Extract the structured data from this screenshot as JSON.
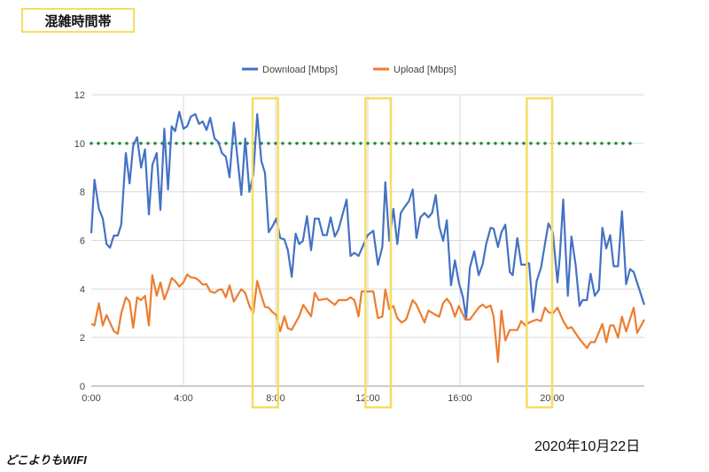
{
  "header": {
    "title": "混雑時間帯"
  },
  "footer": {
    "date": "2020年10月22日",
    "logo": "どこよりもWIFI"
  },
  "chart_data": {
    "type": "line",
    "title": "",
    "xlabel": "",
    "ylabel": "",
    "xlim": [
      0,
      24
    ],
    "ylim": [
      0,
      12
    ],
    "grid": true,
    "legend_position": "top-center",
    "x_ticks": [
      {
        "value": 0,
        "label": "0:00"
      },
      {
        "value": 4,
        "label": "4:00"
      },
      {
        "value": 8,
        "label": "8:00"
      },
      {
        "value": 12,
        "label": "12:00"
      },
      {
        "value": 16,
        "label": "16:00"
      },
      {
        "value": 20,
        "label": "20:00"
      }
    ],
    "y_ticks": [
      0,
      2,
      4,
      6,
      8,
      10,
      12
    ],
    "reference_line": {
      "y": 10,
      "color": "#1e8a3a",
      "style": "dotted"
    },
    "highlight_ranges": [
      [
        7.0,
        8.1
      ],
      [
        11.9,
        13.0
      ],
      [
        18.9,
        20.0
      ]
    ],
    "highlight_color": "#f5dd63",
    "series": [
      {
        "name": "Download [Mbps]",
        "color": "#4472c4",
        "x": [
          0,
          0.14,
          0.33,
          0.5,
          0.66,
          0.81,
          0.98,
          1.15,
          1.3,
          1.5,
          1.66,
          1.82,
          1.99,
          2.16,
          2.33,
          2.5,
          2.65,
          2.84,
          3.0,
          3.17,
          3.33,
          3.49,
          3.64,
          3.82,
          4.0,
          4.16,
          4.32,
          4.52,
          4.67,
          4.84,
          5.0,
          5.16,
          5.35,
          5.52,
          5.67,
          5.84,
          6.0,
          6.19,
          6.34,
          6.51,
          6.68,
          6.86,
          7.03,
          7.2,
          7.38,
          7.54,
          7.7,
          7.86,
          8.03,
          8.2,
          8.38,
          8.53,
          8.7,
          8.87,
          9.02,
          9.18,
          9.36,
          9.54,
          9.7,
          9.87,
          10.05,
          10.22,
          10.39,
          10.57,
          10.73,
          11.08,
          11.25,
          11.42,
          11.6,
          11.85,
          11.98,
          12.24,
          12.44,
          12.63,
          12.76,
          12.93,
          13.11,
          13.28,
          13.43,
          13.6,
          13.79,
          13.95,
          14.11,
          14.28,
          14.46,
          14.63,
          14.79,
          14.95,
          15.1,
          15.27,
          15.43,
          15.61,
          15.78,
          15.95,
          16.13,
          16.27,
          16.43,
          16.62,
          16.81,
          16.98,
          17.14,
          17.33,
          17.46,
          17.65,
          17.8,
          17.97,
          18.16,
          18.29,
          18.49,
          18.66,
          18.84,
          19.0,
          19.17,
          19.33,
          19.52,
          19.69,
          19.84,
          20.03,
          20.23,
          20.33,
          20.48,
          20.68,
          20.84,
          21.02,
          21.19,
          21.32,
          21.51,
          21.67,
          21.85,
          22.03,
          22.18,
          22.35,
          22.52,
          22.67,
          22.86,
          23.03,
          23.21,
          23.38,
          23.54,
          24.0
        ],
        "values": [
          6.3,
          8.5,
          7.3,
          6.9,
          5.85,
          5.7,
          6.2,
          6.2,
          6.65,
          9.6,
          8.35,
          9.9,
          10.25,
          9.0,
          9.75,
          7.07,
          9.1,
          9.6,
          7.25,
          10.6,
          8.1,
          10.7,
          10.5,
          11.3,
          10.6,
          10.7,
          11.1,
          11.2,
          10.8,
          10.9,
          10.55,
          11.05,
          10.2,
          10.05,
          9.6,
          9.45,
          8.6,
          10.85,
          9.45,
          7.87,
          10.2,
          8.0,
          8.7,
          11.2,
          9.27,
          8.78,
          6.34,
          6.58,
          6.9,
          6.1,
          6.04,
          5.6,
          4.5,
          6.28,
          5.85,
          5.97,
          7.0,
          5.6,
          6.9,
          6.9,
          6.22,
          6.22,
          6.95,
          6.16,
          6.46,
          7.68,
          5.36,
          5.49,
          5.36,
          5.9,
          6.2,
          6.4,
          5.0,
          5.73,
          8.4,
          5.98,
          7.3,
          5.85,
          7.13,
          7.38,
          7.62,
          8.1,
          6.1,
          6.95,
          7.13,
          6.95,
          7.13,
          7.87,
          6.58,
          5.98,
          6.83,
          4.15,
          5.18,
          4.27,
          3.66,
          2.8,
          4.88,
          5.55,
          4.57,
          5.0,
          5.85,
          6.52,
          6.48,
          5.73,
          6.34,
          6.65,
          4.7,
          4.57,
          6.1,
          5.0,
          5.0,
          5.06,
          3.05,
          4.33,
          4.88,
          5.85,
          6.7,
          6.34,
          4.27,
          5.3,
          7.68,
          3.72,
          6.16,
          5.0,
          3.3,
          3.54,
          3.54,
          4.63,
          3.72,
          3.96,
          6.52,
          5.67,
          6.22,
          4.94,
          4.94,
          7.2,
          4.2,
          4.82,
          4.7,
          3.35
        ]
      },
      {
        "name": "Upload [Mbps]",
        "color": "#ed7d31",
        "x": [
          0,
          0.14,
          0.33,
          0.5,
          0.66,
          0.98,
          1.15,
          1.3,
          1.5,
          1.66,
          1.82,
          1.99,
          2.16,
          2.33,
          2.5,
          2.65,
          2.84,
          3.0,
          3.17,
          3.33,
          3.49,
          3.64,
          3.82,
          4.0,
          4.16,
          4.32,
          4.52,
          4.67,
          4.84,
          5.0,
          5.16,
          5.35,
          5.52,
          5.67,
          5.84,
          6.0,
          6.19,
          6.34,
          6.51,
          6.68,
          6.86,
          7.03,
          7.2,
          7.38,
          7.54,
          7.7,
          7.86,
          8.03,
          8.2,
          8.38,
          8.53,
          8.7,
          9.02,
          9.2,
          9.54,
          9.7,
          9.87,
          10.22,
          10.57,
          10.73,
          11.08,
          11.25,
          11.42,
          11.6,
          11.73,
          11.98,
          12.24,
          12.44,
          12.63,
          12.76,
          12.93,
          13.11,
          13.28,
          13.47,
          13.66,
          13.95,
          14.11,
          14.46,
          14.63,
          14.95,
          15.1,
          15.27,
          15.43,
          15.61,
          15.78,
          15.95,
          16.24,
          16.43,
          16.81,
          16.98,
          17.14,
          17.33,
          17.46,
          17.65,
          17.8,
          17.97,
          18.16,
          18.49,
          18.66,
          18.84,
          19.0,
          19.33,
          19.52,
          19.69,
          19.84,
          20.03,
          20.23,
          20.48,
          20.68,
          20.84,
          21.19,
          21.51,
          21.67,
          21.85,
          22.18,
          22.35,
          22.52,
          22.67,
          22.86,
          23.03,
          23.21,
          23.54,
          23.69,
          24.0
        ],
        "values": [
          2.56,
          2.5,
          3.41,
          2.5,
          2.93,
          2.26,
          2.16,
          3.0,
          3.66,
          3.48,
          2.4,
          3.66,
          3.54,
          3.72,
          2.5,
          4.57,
          3.72,
          4.27,
          3.57,
          3.96,
          4.45,
          4.33,
          4.1,
          4.27,
          4.6,
          4.48,
          4.45,
          4.35,
          4.18,
          4.2,
          3.9,
          3.84,
          3.96,
          3.99,
          3.66,
          4.15,
          3.48,
          3.72,
          3.99,
          3.84,
          3.3,
          3.0,
          4.33,
          3.72,
          3.26,
          3.23,
          3.05,
          2.93,
          2.26,
          2.87,
          2.38,
          2.32,
          2.87,
          3.35,
          2.87,
          3.84,
          3.54,
          3.6,
          3.35,
          3.54,
          3.54,
          3.66,
          3.54,
          2.87,
          3.9,
          3.9,
          3.9,
          2.8,
          2.86,
          3.98,
          3.17,
          3.3,
          2.8,
          2.62,
          2.74,
          3.54,
          3.36,
          2.62,
          3.11,
          2.93,
          2.86,
          3.42,
          3.6,
          3.36,
          2.86,
          3.3,
          2.74,
          2.74,
          3.23,
          3.36,
          3.23,
          3.32,
          2.86,
          1.0,
          3.11,
          1.88,
          2.31,
          2.31,
          2.68,
          2.5,
          2.62,
          2.74,
          2.68,
          3.23,
          3.05,
          2.99,
          3.23,
          2.68,
          2.37,
          2.43,
          1.94,
          1.57,
          1.81,
          1.81,
          2.56,
          1.81,
          2.5,
          2.5,
          2.0,
          2.86,
          2.25,
          3.23,
          2.19,
          2.74
        ]
      }
    ]
  }
}
